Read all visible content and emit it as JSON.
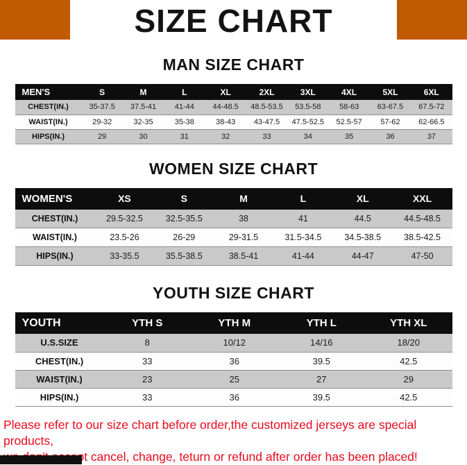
{
  "title": "SIZE CHART",
  "colors": {
    "accent": "#c25903",
    "title_color": "#131313",
    "table_header_bg": "#0d0d0d",
    "row_alt_bg": "#c9c9c9",
    "note_red": "#e60b1e"
  },
  "charts": [
    {
      "heading": "MAN SIZE CHART",
      "header": [
        "MEN'S",
        "S",
        "M",
        "L",
        "XL",
        "2XL",
        "3XL",
        "4XL",
        "5XL",
        "6XL"
      ],
      "rows": [
        [
          "CHEST(IN.)",
          "35-37.5",
          "37.5-41",
          "41-44",
          "44-48.5",
          "48.5-53.5",
          "53.5-58",
          "58-63",
          "63-67.5",
          "67.5-72"
        ],
        [
          "WAIST(IN.)",
          "29-32",
          "32-35",
          "35-38",
          "38-43",
          "43-47.5",
          "47.5-52.5",
          "52.5-57",
          "57-62",
          "62-66.5"
        ],
        [
          "HIPS(IN.)",
          "29",
          "30",
          "31",
          "32",
          "33",
          "34",
          "35",
          "36",
          "37"
        ]
      ]
    },
    {
      "heading": "WOMEN SIZE CHART",
      "header": [
        "WOMEN'S",
        "XS",
        "S",
        "M",
        "L",
        "XL",
        "XXL"
      ],
      "rows": [
        [
          "CHEST(IN.)",
          "29.5-32.5",
          "32.5-35.5",
          "38",
          "41",
          "44.5",
          "44.5-48.5"
        ],
        [
          "WAIST(IN.)",
          "23.5-26",
          "26-29",
          "29-31.5",
          "31.5-34.5",
          "34.5-38.5",
          "38.5-42.5"
        ],
        [
          "HIPS(IN.)",
          "33-35.5",
          "35.5-38.5",
          "38.5-41",
          "41-44",
          "44-47",
          "47-50"
        ]
      ]
    },
    {
      "heading": "YOUTH SIZE CHART",
      "header": [
        "YOUTH",
        "YTH S",
        "YTH M",
        "YTH L",
        "YTH XL"
      ],
      "rows": [
        [
          "U.S.SIZE",
          "8",
          "10/12",
          "14/16",
          "18/20"
        ],
        [
          "CHEST(IN.)",
          "33",
          "36",
          "39.5",
          "42.5"
        ],
        [
          "WAIST(IN.)",
          "23",
          "25",
          "27",
          "29"
        ],
        [
          "HIPS(IN.)",
          "33",
          "36",
          "39.5",
          "42.5"
        ]
      ]
    }
  ],
  "footer": {
    "line1": "Please refer to our size chart before order,the customized jerseys are special products,",
    "line2": "we don't accept cancel, change, teturn or refund after order has been placed!"
  }
}
